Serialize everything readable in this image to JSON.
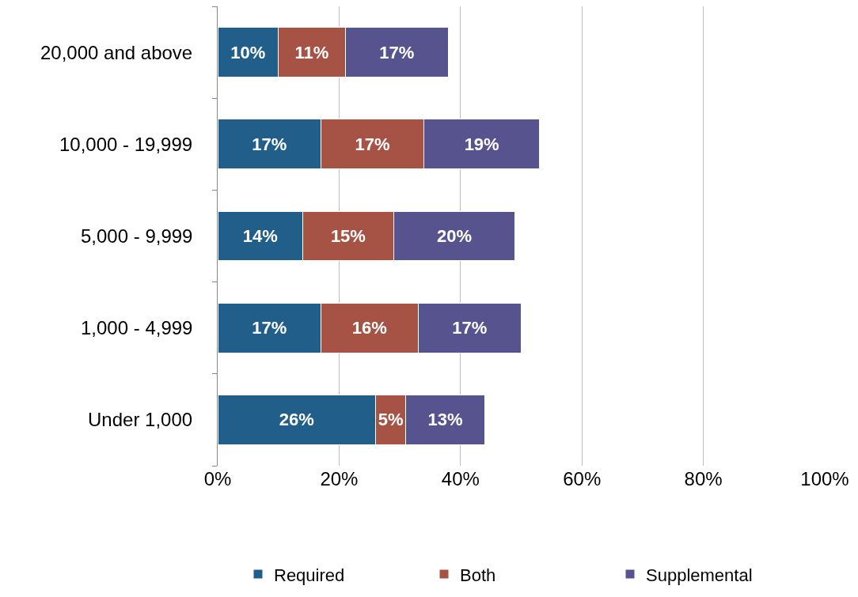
{
  "chart_data": {
    "type": "bar",
    "orientation": "horizontal",
    "stacked": true,
    "categories": [
      "20,000 and above",
      "10,000 - 19,999",
      "5,000 - 9,999",
      "1,000 - 4,999",
      "Under 1,000"
    ],
    "series": [
      {
        "name": "Required",
        "color": "#225e8a",
        "values": [
          10,
          17,
          14,
          17,
          26
        ],
        "value_labels": [
          "10%",
          "17%",
          "14%",
          "17%",
          "26%"
        ]
      },
      {
        "name": "Both",
        "color": "#a65345",
        "values": [
          11,
          17,
          15,
          16,
          5
        ],
        "value_labels": [
          "11%",
          "17%",
          "15%",
          "16%",
          "5%"
        ]
      },
      {
        "name": "Supplemental",
        "color": "#57538f",
        "values": [
          17,
          19,
          20,
          17,
          13
        ],
        "value_labels": [
          "17%",
          "19%",
          "20%",
          "17%",
          "13%"
        ]
      }
    ],
    "xlim": [
      0,
      100
    ],
    "xticks": [
      {
        "value": 0,
        "label": "0%"
      },
      {
        "value": 20,
        "label": "20%"
      },
      {
        "value": 40,
        "label": "40%"
      },
      {
        "value": 60,
        "label": "60%"
      },
      {
        "value": 80,
        "label": "80%"
      },
      {
        "value": 100,
        "label": "100%"
      }
    ],
    "grid": "x",
    "legend": "bottom"
  }
}
